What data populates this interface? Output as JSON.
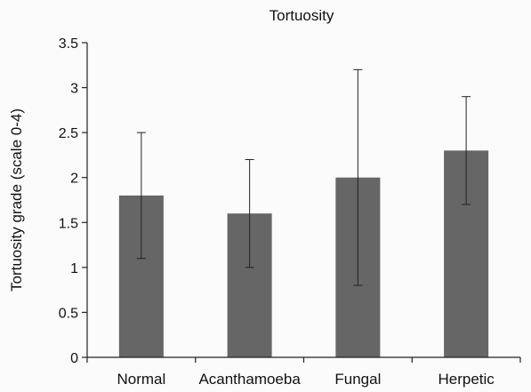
{
  "chart_data": {
    "type": "bar",
    "title": "Tortuosity",
    "xlabel": "",
    "ylabel": "Tortuosity grade (scale 0-4)",
    "categories": [
      "Normal",
      "Acanthamoeba",
      "Fungal",
      "Herpetic"
    ],
    "values": [
      1.8,
      1.6,
      2.0,
      2.3
    ],
    "error_low": [
      1.1,
      1.0,
      0.8,
      1.7
    ],
    "error_high": [
      2.5,
      2.2,
      3.2,
      2.9
    ],
    "ylim": [
      0,
      3.5
    ],
    "yticks": [
      "0",
      "0.5",
      "1",
      "1.5",
      "2",
      "2.5",
      "3",
      "3.5"
    ],
    "grid": false,
    "legend": "none",
    "bar_color": "#666666"
  }
}
